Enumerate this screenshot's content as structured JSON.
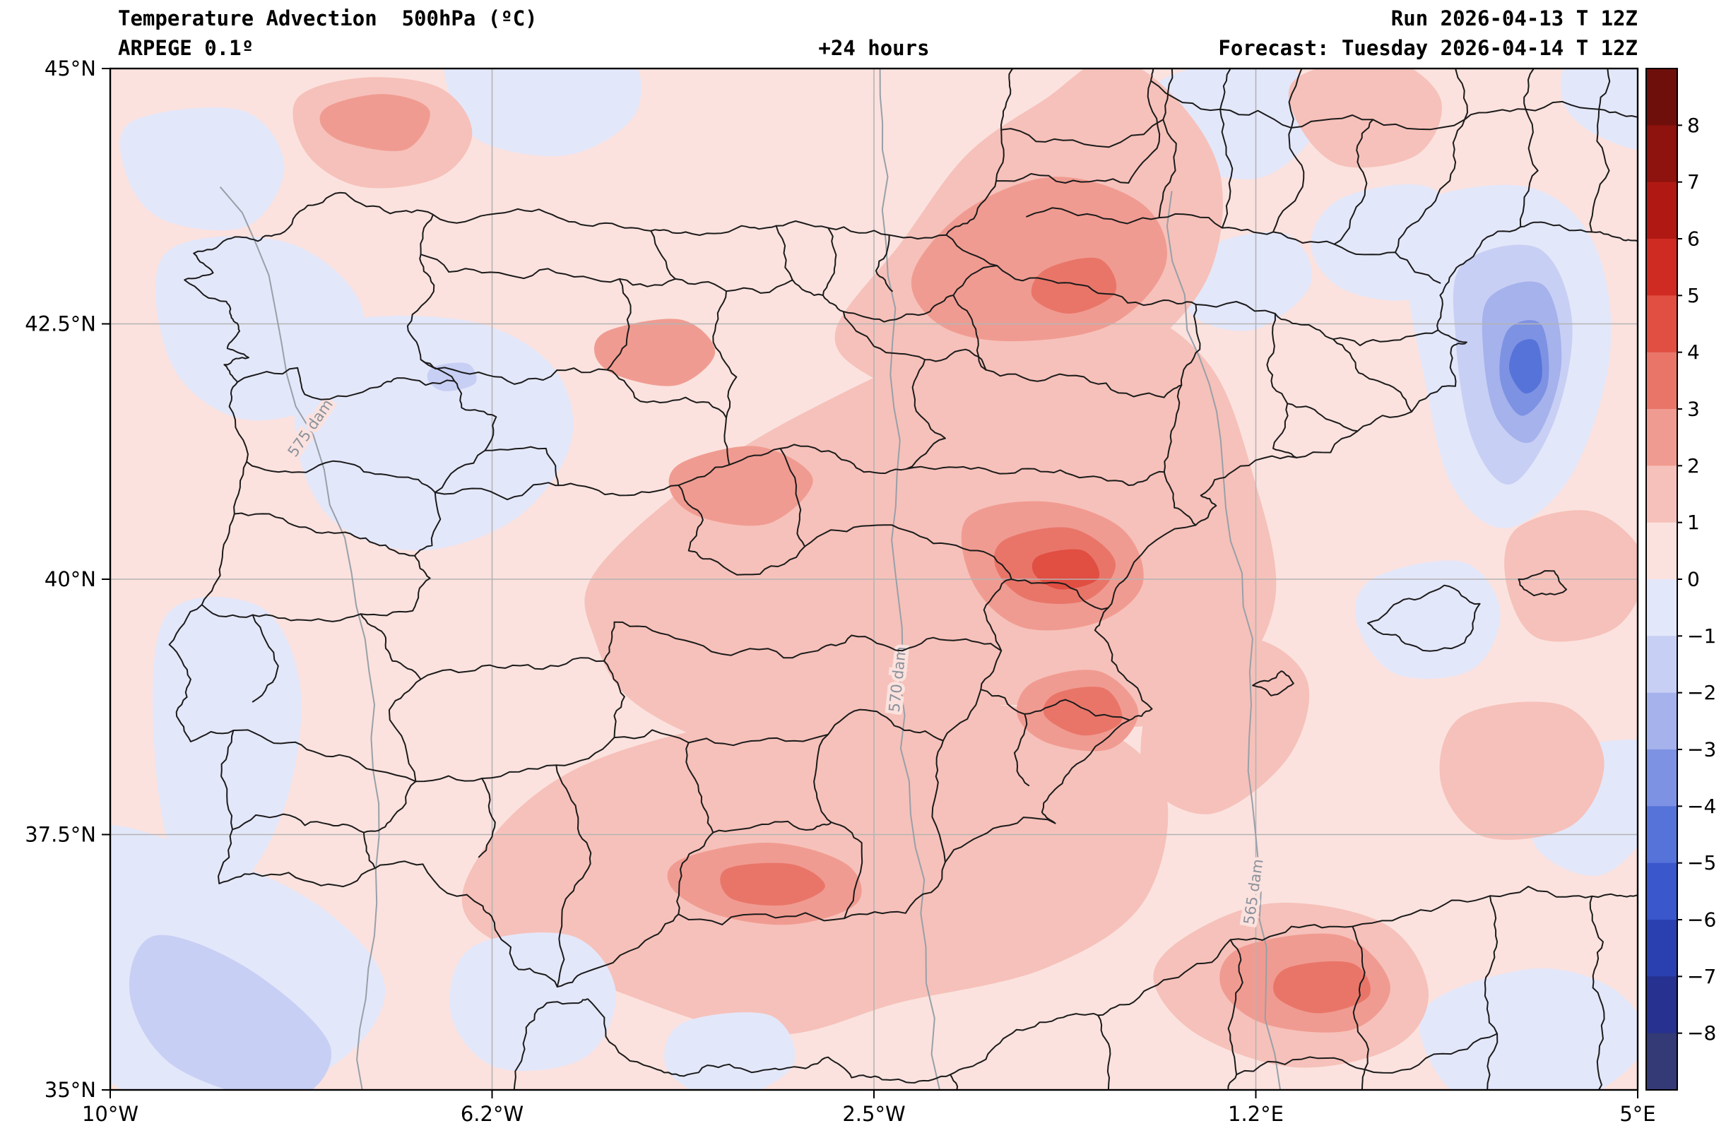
{
  "header": {
    "title_line1": "Temperature Advection  500hPa (ºC)",
    "title_line2": "ARPEGE 0.1º",
    "lead_time": "+24 hours",
    "run_line": "Run 2026-04-13 T 12Z",
    "forecast_line": "Forecast: Tuesday 2026-04-14 T 12Z"
  },
  "axes": {
    "lat_tick_labels": [
      "45°N",
      "42.5°N",
      "40°N",
      "37.5°N",
      "35°N"
    ],
    "lon_tick_labels": [
      "10°W",
      "6.2°W",
      "2.5°W",
      "1.2°E",
      "5°E"
    ]
  },
  "colorbar": {
    "unit": "ºC",
    "tick_labels": [
      "8",
      "7",
      "6",
      "5",
      "4",
      "3",
      "2",
      "1",
      "0",
      "−1",
      "−2",
      "−3",
      "−4",
      "−5",
      "−6",
      "−7",
      "−8"
    ],
    "colors_top_to_bottom": [
      "#6e0f0c",
      "#8e120e",
      "#b01913",
      "#cf2b22",
      "#e14e42",
      "#e97569",
      "#f09b91",
      "#f6c1ba",
      "#fbe2de",
      "#e3e7fa",
      "#c8cff4",
      "#a5b2ec",
      "#7e92e3",
      "#5673d9",
      "#3a57cb",
      "#2b40b0",
      "#27318f",
      "#333a75"
    ]
  },
  "map_overlays": {
    "height_contour_labels": [
      "575 dam",
      "570 dam",
      "565 dam"
    ],
    "boundary_color": "#1b1b1b",
    "grid_color": "#b4b4b4",
    "contour_color": "#98a0a8"
  },
  "chart_data": {
    "type": "heatmap",
    "variable": "temperature advection at 500 hPa",
    "unit": "ºC",
    "title": "Temperature Advection  500hPa (ºC)",
    "model": "ARPEGE 0.1º",
    "run": "2026-04-13 T 12Z",
    "forecast_valid": "Tuesday 2026-04-14 T 12Z",
    "lead_time_hours": 24,
    "x_axis": {
      "quantity": "longitude",
      "range_deg": [
        -10,
        5
      ],
      "tick_labels": [
        "10°W",
        "6.2°W",
        "2.5°W",
        "1.2°E",
        "5°E"
      ]
    },
    "y_axis": {
      "quantity": "latitude",
      "range_deg": [
        35,
        45
      ],
      "tick_labels": [
        "45°N",
        "42.5°N",
        "40°N",
        "37.5°N",
        "35°N"
      ]
    },
    "color_levels": [
      -8,
      -7,
      -6,
      -5,
      -4,
      -3,
      -2,
      -1,
      0,
      1,
      2,
      3,
      4,
      5,
      6,
      7,
      8
    ],
    "grid": true,
    "legend_position": "right colorbar",
    "overlays": [
      "geopotential height contours (565, 570, 575 dam)",
      "coastlines and province boundaries"
    ],
    "features": [
      {
        "kind": "warm-advection max",
        "band_degC": "4 to 5",
        "approx_lon": -0.6,
        "approx_lat": 40.1
      },
      {
        "kind": "warm-advection max",
        "band_degC": "3 to 4",
        "approx_lon": -0.5,
        "approx_lat": 38.7
      },
      {
        "kind": "warm-advection max",
        "band_degC": "3 to 4",
        "approx_lon": -3.4,
        "approx_lat": 37.0
      },
      {
        "kind": "warm-advection max",
        "band_degC": "3 to 4",
        "approx_lon": -0.6,
        "approx_lat": 42.9
      },
      {
        "kind": "warm-advection max",
        "band_degC": "3 to 4",
        "approx_lon": 1.9,
        "approx_lat": 36.0
      },
      {
        "kind": "broad warm advection",
        "band_degC": "1 to 3",
        "region": "central, eastern and southern Iberia extending into SW France"
      },
      {
        "kind": "cold-advection min",
        "band_degC": "-4 to -5",
        "approx_lon": 3.9,
        "approx_lat": 42.0,
        "region": "NW Mediterranean off Catalonia"
      },
      {
        "kind": "weak cold advection",
        "band_degC": "0 to -2",
        "region": "western Portugal, NW Castile, SW Atlantic corner, patches over S France and Balearics"
      }
    ]
  }
}
